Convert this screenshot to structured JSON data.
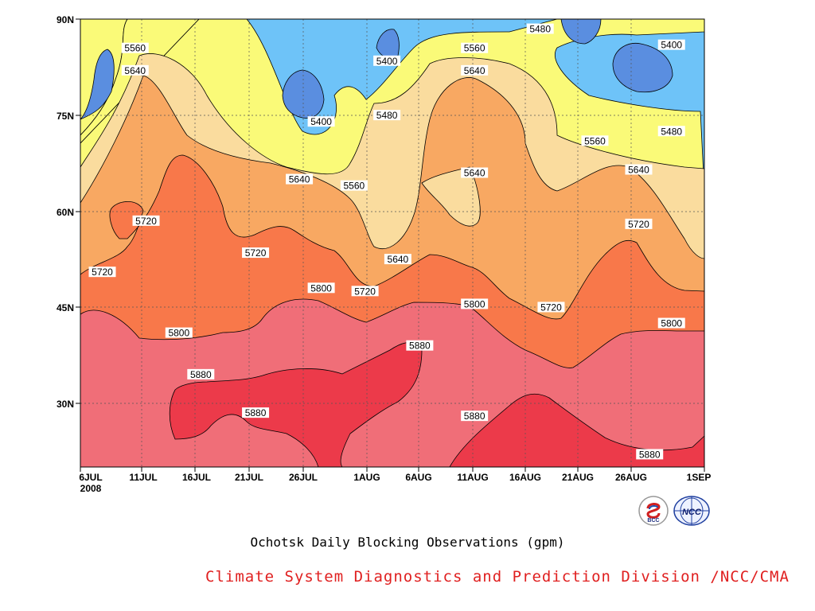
{
  "chart_data": {
    "type": "heatmap",
    "title": "Ochotsk Daily Blocking Observations (gpm)",
    "xlabel": "",
    "ylabel": "",
    "x_ticks": [
      "6JUL",
      "11JUL",
      "16JUL",
      "21JUL",
      "26JUL",
      "1AUG",
      "6AUG",
      "11AUG",
      "16AUG",
      "21AUG",
      "26AUG",
      "1SEP"
    ],
    "x_year_label": "2008",
    "x_range_days": [
      "2008-07-06",
      "2008-09-01"
    ],
    "y_ticks": [
      "30N",
      "45N",
      "60N",
      "75N",
      "90N"
    ],
    "y_range_deg": [
      20,
      90
    ],
    "contour_levels": [
      5400,
      5480,
      5560,
      5640,
      5720,
      5800,
      5880
    ],
    "fill_colors": {
      "below_5400": "#5a8ee0",
      "5400_5480": "#6ec3f8",
      "5480_5560": "#fafa78",
      "5560_5640": "#fadc9e",
      "5640_5720": "#f8a862",
      "5720_5800": "#f8784a",
      "5800_5880": "#f06e78",
      "above_5880": "#ec3a4a"
    },
    "contour_labels": [
      {
        "value": "5560",
        "date": "2008-07-11",
        "lat": 85.5
      },
      {
        "value": "5640",
        "date": "2008-07-11",
        "lat": 82
      },
      {
        "value": "5400",
        "date": "2008-07-28",
        "lat": 74
      },
      {
        "value": "5400",
        "date": "2008-08-03",
        "lat": 83.5
      },
      {
        "value": "5480",
        "date": "2008-08-03",
        "lat": 75
      },
      {
        "value": "5480",
        "date": "2008-08-17",
        "lat": 88.5
      },
      {
        "value": "5560",
        "date": "2008-08-11",
        "lat": 85.5
      },
      {
        "value": "5640",
        "date": "2008-08-11",
        "lat": 82
      },
      {
        "value": "5400",
        "date": "2008-08-29",
        "lat": 86
      },
      {
        "value": "5480",
        "date": "2008-08-29",
        "lat": 72.5
      },
      {
        "value": "5560",
        "date": "2008-08-22",
        "lat": 71
      },
      {
        "value": "5640",
        "date": "2008-08-26",
        "lat": 66.5
      },
      {
        "value": "5640",
        "date": "2008-07-26",
        "lat": 65
      },
      {
        "value": "5560",
        "date": "2008-07-31",
        "lat": 64
      },
      {
        "value": "5640",
        "date": "2008-08-11",
        "lat": 66
      },
      {
        "value": "5720",
        "date": "2008-07-12",
        "lat": 58.5
      },
      {
        "value": "5720",
        "date": "2008-07-08",
        "lat": 50.5
      },
      {
        "value": "5720",
        "date": "2008-07-22",
        "lat": 53.5
      },
      {
        "value": "5640",
        "date": "2008-08-04",
        "lat": 52.5
      },
      {
        "value": "5720",
        "date": "2008-08-26",
        "lat": 58
      },
      {
        "value": "5800",
        "date": "2008-07-28",
        "lat": 48
      },
      {
        "value": "5720",
        "date": "2008-08-01",
        "lat": 47.5
      },
      {
        "value": "5800",
        "date": "2008-08-11",
        "lat": 45.5
      },
      {
        "value": "5720",
        "date": "2008-08-18",
        "lat": 45
      },
      {
        "value": "5800",
        "date": "2008-08-29",
        "lat": 42.5
      },
      {
        "value": "5800",
        "date": "2008-07-15",
        "lat": 41
      },
      {
        "value": "5880",
        "date": "2008-08-06",
        "lat": 39
      },
      {
        "value": "5880",
        "date": "2008-07-17",
        "lat": 34.5
      },
      {
        "value": "5880",
        "date": "2008-07-22",
        "lat": 28.5
      },
      {
        "value": "5880",
        "date": "2008-08-11",
        "lat": 28
      },
      {
        "value": "5880",
        "date": "2008-08-27",
        "lat": 22
      }
    ]
  },
  "caption": {
    "title": "Ochotsk Daily Blocking Observations (gpm)",
    "credit": "Climate System Diagnostics and Prediction Division /NCC/CMA",
    "credit_color": "#e02020"
  },
  "logos": {
    "left": {
      "text": "BCC",
      "icon": "bcc-logo-icon"
    },
    "right": {
      "text": "NCC",
      "icon": "ncc-logo-icon"
    }
  }
}
